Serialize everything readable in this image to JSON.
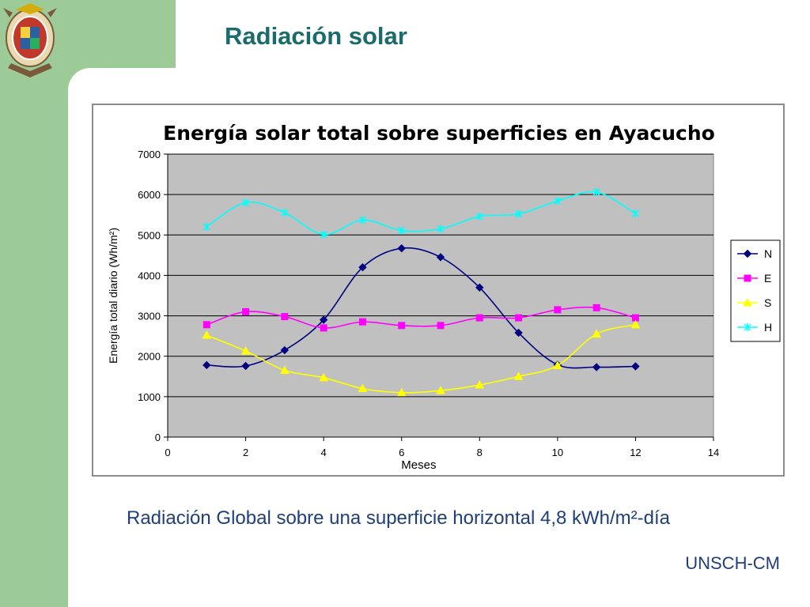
{
  "slide": {
    "title": "Radiación solar",
    "caption": "Radiación Global sobre una superficie horizontal 4,8 kWh/m²-día",
    "footer": "UNSCH-CM",
    "accent_color": "#1a6b6b",
    "band_color": "#9dcb97",
    "logo_icon": "university-crest-icon"
  },
  "chart_data": {
    "type": "scatter",
    "title": "Energía solar total sobre superficies en Ayacucho",
    "xlabel": "Meses",
    "ylabel": "Energía total diario (Wh/m²)",
    "xlim": [
      0,
      14
    ],
    "ylim": [
      0,
      7000
    ],
    "xticks": [
      0,
      2,
      4,
      6,
      8,
      10,
      12,
      14
    ],
    "yticks": [
      0,
      1000,
      2000,
      3000,
      4000,
      5000,
      6000,
      7000
    ],
    "grid": true,
    "legend_position": "right",
    "plot_background": "#c0c0c0",
    "series": [
      {
        "name": "N",
        "color": "#000080",
        "marker": "diamond",
        "x": [
          1,
          2,
          3,
          4,
          5,
          6,
          7,
          8,
          9,
          10,
          11,
          12
        ],
        "y": [
          1780,
          1760,
          2150,
          2900,
          4200,
          4670,
          4450,
          3700,
          2580,
          1790,
          1730,
          1750
        ]
      },
      {
        "name": "E",
        "color": "#ff00ff",
        "marker": "square",
        "x": [
          1,
          2,
          3,
          4,
          5,
          6,
          7,
          8,
          9,
          10,
          11,
          12
        ],
        "y": [
          2780,
          3100,
          2980,
          2700,
          2850,
          2760,
          2760,
          2950,
          2950,
          3150,
          3200,
          2950
        ]
      },
      {
        "name": "S",
        "color": "#ffff00",
        "marker": "triangle",
        "x": [
          1,
          2,
          3,
          4,
          5,
          6,
          7,
          8,
          9,
          10,
          11,
          12
        ],
        "y": [
          2520,
          2130,
          1650,
          1470,
          1200,
          1100,
          1150,
          1290,
          1500,
          1770,
          2550,
          2780
        ]
      },
      {
        "name": "H",
        "color": "#00ffff",
        "marker": "cross",
        "x": [
          1,
          2,
          3,
          4,
          5,
          6,
          7,
          8,
          9,
          10,
          11,
          12
        ],
        "y": [
          5200,
          5800,
          5550,
          5010,
          5370,
          5110,
          5150,
          5460,
          5520,
          5840,
          6060,
          5530
        ]
      }
    ]
  }
}
